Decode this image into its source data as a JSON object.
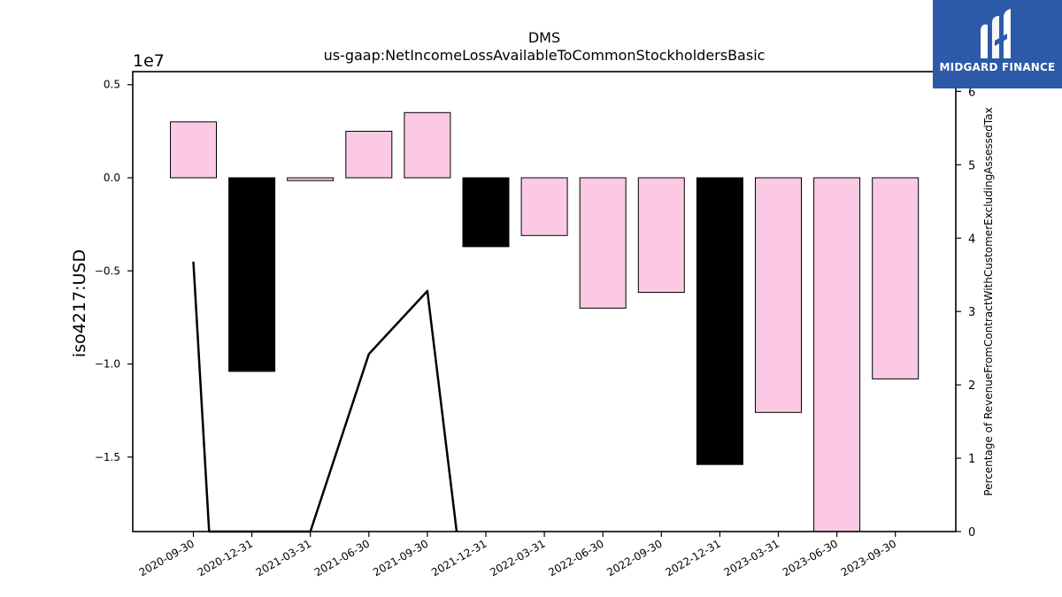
{
  "chart_data": {
    "type": "bar",
    "title": "DMS",
    "subtitle": "us-gaap:NetIncomeLossAvailableToCommonStockholdersBasic",
    "ylabel": "iso4217:USD",
    "y_multiplier_label": "1e7",
    "y2label": "Percentage of RevenueFromContractWithCustomerExcludingAssessedTax",
    "categories": [
      "2020-09-30",
      "2020-12-31",
      "2021-03-31",
      "2021-06-30",
      "2021-09-30",
      "2021-12-31",
      "2022-03-31",
      "2022-06-30",
      "2022-09-30",
      "2022-12-31",
      "2023-03-31",
      "2023-06-30",
      "2023-09-30"
    ],
    "values": [
      0.3,
      -1.04,
      -0.015,
      0.25,
      0.35,
      -0.37,
      -0.31,
      -0.7,
      -0.615,
      -1.54,
      -1.26,
      -1.9,
      -1.08
    ],
    "bar_colors": [
      "#fbc9e4",
      "#000000",
      "#fbc9e4",
      "#fbc9e4",
      "#fbc9e4",
      "#000000",
      "#fbc9e4",
      "#fbc9e4",
      "#fbc9e4",
      "#000000",
      "#fbc9e4",
      "#fbc9e4",
      "#fbc9e4"
    ],
    "ylim": [
      -1.9,
      0.57
    ],
    "yticks": [
      0.5,
      0.0,
      -0.5,
      -1.0,
      -1.5
    ],
    "ytick_labels": [
      "0.5",
      "0.0",
      "−0.5",
      "−1.0",
      "−1.5"
    ],
    "y2lim": [
      0,
      6.27
    ],
    "y2ticks": [
      0,
      1,
      2,
      3,
      4,
      5,
      6
    ],
    "y2tick_labels": [
      "0",
      "1",
      "2",
      "3",
      "4",
      "5",
      "6"
    ],
    "line_series": {
      "x_index": [
        0,
        0.27,
        2.0,
        3.0,
        4.0,
        4.5
      ],
      "values": [
        3.68,
        0.0,
        0.0,
        2.42,
        3.28,
        0.0
      ]
    },
    "grid": false,
    "legend": "none"
  },
  "logo": {
    "text": "MIDGARD FINANCE",
    "bg_color": "#2c5aa8"
  }
}
